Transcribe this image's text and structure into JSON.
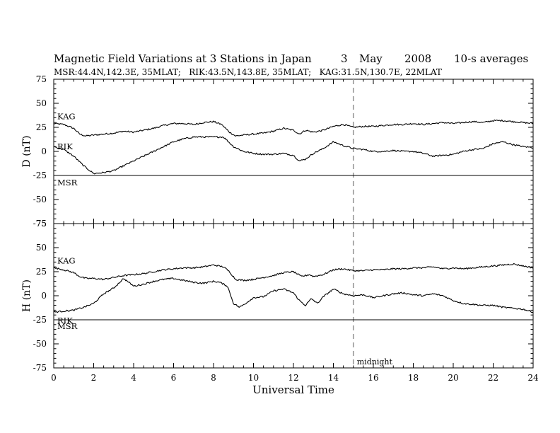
{
  "title": {
    "main": "Magnetic Field Variations at 3 Stations in Japan",
    "day": "3",
    "month": "May",
    "year": "2008",
    "averaging": "10-s averages"
  },
  "subtitle": "MSR:44.4N,142.3E, 35MLAT;   RIK:43.5N,143.8E, 35MLAT;   KAG:31.5N,130.7E, 22MLAT",
  "annotation": {
    "text": "midnight",
    "x": 15
  },
  "chart_data": [
    {
      "type": "line",
      "panel": "D",
      "ylabel": "D (nT)",
      "xlabel": "",
      "xlim": [
        0,
        24
      ],
      "ylim": [
        -75,
        75
      ],
      "yticks": [
        "75",
        "50",
        "25",
        "0",
        "-25",
        "-50",
        "-75"
      ],
      "grid": false,
      "series": [
        {
          "name": "KAG",
          "x": [
            0,
            0.5,
            1,
            1.3,
            1.6,
            2,
            2.5,
            3,
            3.5,
            4,
            4.5,
            5,
            5.5,
            6,
            6.5,
            7,
            7.5,
            8,
            8.4,
            8.8,
            9.1,
            9.5,
            10,
            10.5,
            11,
            11.5,
            12,
            12.3,
            12.6,
            13,
            13.5,
            14,
            14.5,
            15,
            15.5,
            16,
            16.5,
            17,
            17.5,
            18,
            18.5,
            19,
            19.5,
            20,
            20.5,
            21,
            21.5,
            22,
            22.5,
            23,
            23.5,
            24
          ],
          "y": [
            29,
            28,
            24,
            18,
            16,
            17,
            18,
            19,
            21,
            20,
            22,
            24,
            27,
            29,
            29,
            28,
            30,
            31,
            28,
            20,
            16,
            17,
            18,
            19,
            21,
            24,
            22,
            18,
            22,
            20,
            22,
            26,
            28,
            25,
            26,
            26,
            27,
            28,
            28,
            29,
            28,
            29,
            30,
            29,
            30,
            31,
            30,
            32,
            32,
            31,
            30,
            29
          ]
        },
        {
          "name": "RIK",
          "x": [
            0,
            0.5,
            1,
            1.5,
            2,
            2.5,
            3,
            3.5,
            4,
            4.5,
            5,
            5.5,
            6,
            6.5,
            7,
            7.5,
            8,
            8.5,
            9,
            9.5,
            10,
            10.5,
            11,
            11.5,
            12,
            12.3,
            12.6,
            13,
            13.5,
            14,
            14.5,
            15,
            15.5,
            16,
            16.5,
            17,
            17.5,
            18,
            18.5,
            19,
            19.5,
            20,
            20.5,
            21,
            21.5,
            22,
            22.5,
            23,
            23.5,
            24
          ],
          "y": [
            5,
            2,
            -5,
            -15,
            -23,
            -22,
            -20,
            -15,
            -10,
            -5,
            0,
            5,
            10,
            13,
            15,
            15,
            15,
            15,
            5,
            0,
            -2,
            -3,
            -3,
            -2,
            -4,
            -10,
            -8,
            -2,
            3,
            10,
            6,
            3,
            2,
            0,
            0,
            1,
            0,
            0,
            -2,
            -5,
            -4,
            -3,
            0,
            2,
            3,
            8,
            10,
            7,
            5,
            4
          ]
        },
        {
          "name": "MSR",
          "x": [
            0,
            24
          ],
          "y": [
            -25,
            -25
          ]
        }
      ]
    },
    {
      "type": "line",
      "panel": "H",
      "ylabel": "H (nT)",
      "xlabel": "Universal Time",
      "xlim": [
        0,
        24
      ],
      "ylim": [
        -75,
        75
      ],
      "xticks": [
        "0",
        "2",
        "4",
        "6",
        "8",
        "10",
        "12",
        "14",
        "16",
        "18",
        "20",
        "22",
        "24"
      ],
      "yticks": [
        "75",
        "50",
        "25",
        "0",
        "-25",
        "-50",
        "-75"
      ],
      "grid": false,
      "series": [
        {
          "name": "KAG",
          "x": [
            0,
            0.5,
            1,
            1.3,
            1.6,
            2,
            2.5,
            3,
            3.5,
            4,
            4.5,
            5,
            5.5,
            6,
            6.5,
            7,
            7.5,
            8,
            8.5,
            8.8,
            9.1,
            9.5,
            10,
            10.5,
            11,
            11.5,
            12,
            12.4,
            12.8,
            13,
            13.5,
            14,
            14.5,
            15,
            15.5,
            16,
            16.5,
            17,
            17.5,
            18,
            18.5,
            19,
            19.5,
            20,
            20.5,
            21,
            21.5,
            22,
            22.5,
            23,
            23.5,
            24
          ],
          "y": [
            29,
            27,
            24,
            20,
            18,
            18,
            17,
            19,
            21,
            22,
            23,
            25,
            27,
            28,
            29,
            29,
            30,
            32,
            30,
            25,
            17,
            16,
            17,
            19,
            21,
            24,
            25,
            20,
            22,
            20,
            22,
            27,
            28,
            26,
            26,
            27,
            27,
            28,
            28,
            29,
            29,
            30,
            28,
            29,
            28,
            29,
            30,
            31,
            32,
            33,
            31,
            29
          ]
        },
        {
          "name": "RIK",
          "x": [
            0,
            0.5,
            1,
            1.5,
            2,
            2.5,
            3,
            3.5,
            4,
            4.5,
            5,
            5.5,
            6,
            6.5,
            7,
            7.5,
            8,
            8.3,
            8.7,
            9,
            9.3,
            9.6,
            10,
            10.5,
            11,
            11.5,
            12,
            12.3,
            12.6,
            12.9,
            13.2,
            13.5,
            14,
            14.5,
            15,
            15.5,
            16,
            16.5,
            17,
            17.5,
            18,
            18.5,
            19,
            19.5,
            20,
            20.5,
            21,
            21.5,
            22,
            22.5,
            23,
            23.5,
            24
          ],
          "y": [
            -17,
            -16,
            -15,
            -12,
            -8,
            2,
            8,
            18,
            10,
            12,
            15,
            17,
            18,
            16,
            14,
            13,
            15,
            14,
            10,
            -8,
            -12,
            -8,
            -2,
            -1,
            5,
            7,
            3,
            -5,
            -10,
            -3,
            -8,
            -1,
            7,
            2,
            0,
            1,
            -2,
            0,
            2,
            3,
            1,
            0,
            2,
            0,
            -5,
            -8,
            -9,
            -10,
            -10,
            -12,
            -13,
            -14,
            -17
          ]
        },
        {
          "name": "MSR",
          "x": [
            0,
            24
          ],
          "y": [
            -25,
            -25
          ]
        }
      ]
    }
  ]
}
